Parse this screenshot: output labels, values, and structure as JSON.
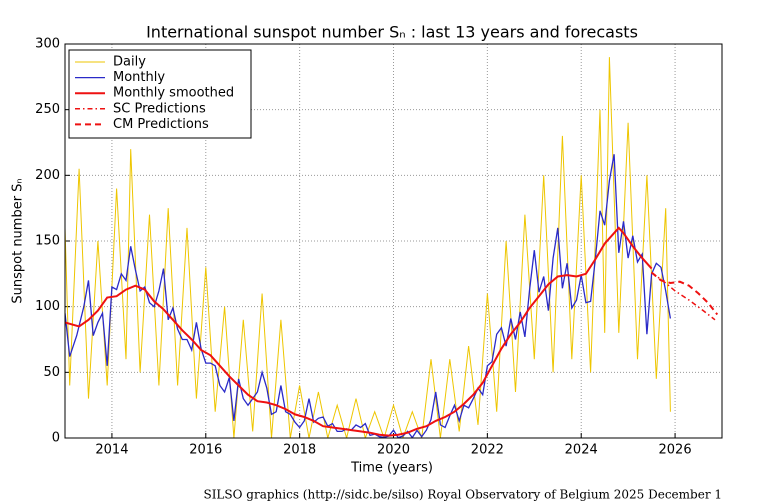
{
  "chart_data": {
    "type": "line",
    "title": "International sunspot number Sₙ : last 13 years and forecasts",
    "xlabel": "Time (years)",
    "ylabel": "Sunspot number Sₙ",
    "footer": "SILSO graphics (http://sidc.be/silso)  Royal Observatory of Belgium  2025 December 1",
    "xlim": [
      2013,
      2027
    ],
    "ylim": [
      0,
      300
    ],
    "xticks": [
      2014,
      2016,
      2018,
      2020,
      2022,
      2024,
      2026
    ],
    "yticks": [
      0,
      50,
      100,
      150,
      200,
      250,
      300
    ],
    "grid": true,
    "legend": "upper left",
    "series": [
      {
        "name": "Daily",
        "color": "#eec600",
        "style": "solid",
        "width": 1,
        "x": [
          2013.0,
          2013.1,
          2013.3,
          2013.5,
          2013.7,
          2013.9,
          2014.1,
          2014.3,
          2014.4,
          2014.6,
          2014.8,
          2015.0,
          2015.2,
          2015.4,
          2015.6,
          2015.8,
          2016.0,
          2016.2,
          2016.4,
          2016.6,
          2016.8,
          2017.0,
          2017.2,
          2017.4,
          2017.6,
          2017.8,
          2018.0,
          2018.2,
          2018.4,
          2018.6,
          2018.8,
          2019.0,
          2019.2,
          2019.4,
          2019.6,
          2019.8,
          2020.0,
          2020.2,
          2020.4,
          2020.6,
          2020.8,
          2021.0,
          2021.2,
          2021.4,
          2021.6,
          2021.8,
          2022.0,
          2022.2,
          2022.4,
          2022.6,
          2022.8,
          2023.0,
          2023.2,
          2023.4,
          2023.6,
          2023.8,
          2024.0,
          2024.2,
          2024.4,
          2024.5,
          2024.6,
          2024.8,
          2025.0,
          2025.2,
          2025.4,
          2025.6,
          2025.8,
          2025.9
        ],
        "values": [
          160,
          40,
          205,
          30,
          150,
          40,
          190,
          60,
          220,
          50,
          170,
          40,
          175,
          40,
          160,
          30,
          130,
          20,
          100,
          0,
          90,
          5,
          110,
          0,
          90,
          0,
          40,
          0,
          35,
          0,
          25,
          0,
          30,
          0,
          20,
          0,
          25,
          0,
          20,
          0,
          60,
          0,
          60,
          5,
          70,
          10,
          110,
          20,
          150,
          35,
          170,
          60,
          200,
          50,
          230,
          60,
          200,
          50,
          250,
          80,
          290,
          80,
          240,
          60,
          200,
          45,
          175,
          20
        ]
      },
      {
        "name": "Monthly",
        "color": "#2a2ac8",
        "style": "solid",
        "width": 1.3,
        "x": [
          2013.0,
          2013.1,
          2013.25,
          2013.4,
          2013.5,
          2013.6,
          2013.7,
          2013.8,
          2013.9,
          2014.0,
          2014.1,
          2014.2,
          2014.3,
          2014.4,
          2014.5,
          2014.6,
          2014.7,
          2014.8,
          2014.9,
          2015.0,
          2015.1,
          2015.2,
          2015.3,
          2015.4,
          2015.5,
          2015.6,
          2015.7,
          2015.8,
          2015.9,
          2016.0,
          2016.1,
          2016.2,
          2016.3,
          2016.4,
          2016.5,
          2016.6,
          2016.7,
          2016.8,
          2016.9,
          2017.0,
          2017.1,
          2017.2,
          2017.3,
          2017.4,
          2017.5,
          2017.6,
          2017.7,
          2017.8,
          2017.9,
          2018.0,
          2018.1,
          2018.2,
          2018.3,
          2018.4,
          2018.5,
          2018.6,
          2018.7,
          2018.8,
          2018.9,
          2019.0,
          2019.1,
          2019.2,
          2019.3,
          2019.4,
          2019.5,
          2019.6,
          2019.7,
          2019.8,
          2019.9,
          2020.0,
          2020.1,
          2020.2,
          2020.3,
          2020.4,
          2020.5,
          2020.6,
          2020.7,
          2020.8,
          2020.9,
          2021.0,
          2021.1,
          2021.2,
          2021.3,
          2021.4,
          2021.5,
          2021.6,
          2021.7,
          2021.8,
          2021.9,
          2022.0,
          2022.1,
          2022.2,
          2022.3,
          2022.4,
          2022.5,
          2022.6,
          2022.7,
          2022.8,
          2022.9,
          2023.0,
          2023.1,
          2023.2,
          2023.3,
          2023.4,
          2023.5,
          2023.6,
          2023.7,
          2023.8,
          2023.9,
          2024.0,
          2024.1,
          2024.2,
          2024.3,
          2024.4,
          2024.5,
          2024.6,
          2024.7,
          2024.8,
          2024.9,
          2025.0,
          2025.1,
          2025.2,
          2025.3,
          2025.4,
          2025.5,
          2025.6,
          2025.7,
          2025.8,
          2025.9
        ],
        "values": [
          95,
          62,
          78,
          100,
          120,
          78,
          88,
          95,
          55,
          115,
          113,
          125,
          120,
          146,
          128,
          112,
          115,
          103,
          100,
          112,
          129,
          90,
          99,
          83,
          75,
          75,
          67,
          88,
          68,
          57,
          57,
          55,
          40,
          35,
          46,
          13,
          45,
          30,
          25,
          30,
          35,
          50,
          38,
          18,
          20,
          40,
          20,
          18,
          12,
          8,
          13,
          30,
          12,
          15,
          16,
          9,
          11,
          5,
          5,
          7,
          6,
          10,
          8,
          11,
          2,
          3,
          1,
          0.5,
          1.5,
          6,
          0.2,
          1.5,
          5,
          0.3,
          5.8,
          1,
          6,
          14,
          35,
          10,
          8,
          17,
          25,
          13,
          25,
          23,
          30,
          38,
          33,
          55,
          58,
          79,
          84,
          70,
          91,
          75,
          96,
          77,
          113,
          143,
          111,
          123,
          97,
          137,
          160,
          114,
          133,
          99,
          105,
          124,
          103,
          104,
          136,
          173,
          162,
          196,
          216,
          141,
          165,
          137,
          154,
          134,
          140,
          79,
          125,
          133,
          130,
          112,
          91
        ]
      },
      {
        "name": "Monthly smoothed",
        "color": "#ee1111",
        "style": "solid",
        "width": 2,
        "x": [
          2013.0,
          2013.3,
          2013.5,
          2013.7,
          2013.9,
          2014.1,
          2014.3,
          2014.5,
          2014.7,
          2014.9,
          2015.1,
          2015.3,
          2015.5,
          2015.7,
          2015.9,
          2016.1,
          2016.3,
          2016.5,
          2016.7,
          2016.9,
          2017.1,
          2017.3,
          2017.5,
          2017.7,
          2017.9,
          2018.1,
          2018.3,
          2018.5,
          2018.7,
          2018.9,
          2019.1,
          2019.3,
          2019.5,
          2019.7,
          2019.9,
          2020.1,
          2020.3,
          2020.5,
          2020.7,
          2020.9,
          2021.1,
          2021.3,
          2021.5,
          2021.7,
          2021.9,
          2022.1,
          2022.3,
          2022.5,
          2022.7,
          2022.9,
          2023.1,
          2023.3,
          2023.5,
          2023.7,
          2023.9,
          2024.1,
          2024.3,
          2024.5,
          2024.7,
          2024.8,
          2024.9,
          2025.1,
          2025.3,
          2025.5
        ],
        "values": [
          88,
          85,
          90,
          97,
          107,
          108,
          113,
          116,
          113,
          104,
          98,
          90,
          82,
          75,
          67,
          63,
          55,
          47,
          40,
          33,
          28,
          27,
          25,
          22,
          18,
          16,
          13,
          9,
          8,
          7,
          6,
          5,
          4,
          2.5,
          1.8,
          2.5,
          4,
          7,
          9,
          13,
          16,
          20,
          26,
          33,
          42,
          55,
          68,
          79,
          88,
          99,
          108,
          117,
          123,
          124,
          123,
          125,
          136,
          148,
          156,
          160,
          156,
          146,
          137,
          129
        ]
      },
      {
        "name": "SC Predictions",
        "color": "#ee1111",
        "style": "dashdot",
        "width": 1.5,
        "x": [
          2025.5,
          2025.8,
          2026.0,
          2026.3,
          2026.6,
          2026.85
        ],
        "values": [
          126,
          118,
          112,
          105,
          97,
          90
        ]
      },
      {
        "name": "CM Predictions",
        "color": "#ee1111",
        "style": "dashed",
        "width": 2,
        "x": [
          2025.5,
          2025.7,
          2025.9,
          2026.1,
          2026.3,
          2026.5,
          2026.7,
          2026.9
        ],
        "values": [
          126,
          120,
          118,
          119,
          116,
          110,
          103,
          94
        ]
      }
    ]
  }
}
